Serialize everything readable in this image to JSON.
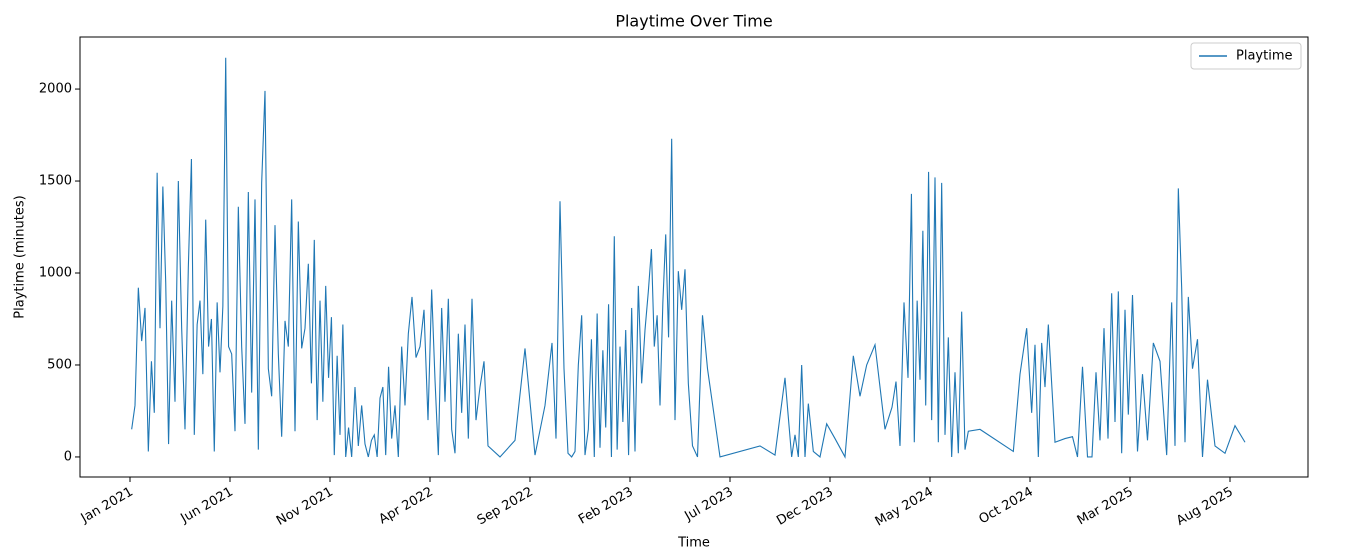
{
  "chart_data": {
    "type": "line",
    "title": "Playtime Over Time",
    "x_label": "Time",
    "y_label": "Playtime (minutes)",
    "x": [
      "2021-01",
      "2021-01",
      "2021-01",
      "2021-01",
      "2021-01",
      "2021-01",
      "2021-02",
      "2021-02",
      "2021-02",
      "2021-02",
      "2021-02",
      "2021-02",
      "2021-02",
      "2021-03",
      "2021-03",
      "2021-03",
      "2021-03",
      "2021-03",
      "2021-03",
      "2021-04",
      "2021-04",
      "2021-04",
      "2021-04",
      "2021-04",
      "2021-04",
      "2021-04",
      "2021-05",
      "2021-05",
      "2021-05",
      "2021-05",
      "2021-05",
      "2021-05",
      "2021-05",
      "2021-06",
      "2021-06",
      "2021-06",
      "2021-06",
      "2021-06",
      "2021-06",
      "2021-07",
      "2021-07",
      "2021-07",
      "2021-07",
      "2021-07",
      "2021-07",
      "2021-08",
      "2021-08",
      "2021-08",
      "2021-08",
      "2021-08",
      "2021-08",
      "2021-09",
      "2021-09",
      "2021-09",
      "2021-09",
      "2021-09",
      "2021-09",
      "2021-10",
      "2021-10",
      "2021-10",
      "2021-10",
      "2021-10",
      "2021-10",
      "2021-10",
      "2021-11",
      "2021-11",
      "2021-11",
      "2021-11",
      "2021-11",
      "2021-11",
      "2021-11",
      "2021-12",
      "2021-12",
      "2021-12",
      "2021-12",
      "2021-12",
      "2021-12",
      "2022-01",
      "2022-01",
      "2022-01",
      "2022-01",
      "2022-01",
      "2022-01",
      "2022-01",
      "2022-02",
      "2022-02",
      "2022-02",
      "2022-02",
      "2022-02",
      "2022-02",
      "2022-03",
      "2022-03",
      "2022-03",
      "2022-03",
      "2022-03",
      "2022-04",
      "2022-04",
      "2022-04",
      "2022-04",
      "2022-04",
      "2022-04",
      "2022-05",
      "2022-05",
      "2022-05",
      "2022-05",
      "2022-05",
      "2022-05",
      "2022-06",
      "2022-06",
      "2022-06",
      "2022-06",
      "2022-06",
      "2022-07",
      "2022-08",
      "2022-08",
      "2022-09",
      "2022-09",
      "2022-10",
      "2022-10",
      "2022-10",
      "2022-10",
      "2022-10",
      "2022-11",
      "2022-11",
      "2022-11",
      "2022-11",
      "2022-11",
      "2022-11",
      "2022-12",
      "2022-12",
      "2022-12",
      "2022-12",
      "2022-12",
      "2022-12",
      "2022-12",
      "2023-01",
      "2023-01",
      "2023-01",
      "2023-01",
      "2023-01",
      "2023-01",
      "2023-01",
      "2023-02",
      "2023-02",
      "2023-02",
      "2023-02",
      "2023-02",
      "2023-02",
      "2023-03",
      "2023-03",
      "2023-03",
      "2023-03",
      "2023-03",
      "2023-03",
      "2023-03",
      "2023-04",
      "2023-04",
      "2023-04",
      "2023-04",
      "2023-04",
      "2023-04",
      "2023-05",
      "2023-05",
      "2023-05",
      "2023-05",
      "2023-06",
      "2023-08",
      "2023-09",
      "2023-09",
      "2023-10",
      "2023-10",
      "2023-10",
      "2023-10",
      "2023-10",
      "2023-10",
      "2023-11",
      "2023-11",
      "2023-11",
      "2023-12",
      "2023-12",
      "2024-01",
      "2024-01",
      "2024-01",
      "2024-02",
      "2024-02",
      "2024-03",
      "2024-03",
      "2024-03",
      "2024-03",
      "2024-03",
      "2024-04",
      "2024-04",
      "2024-04",
      "2024-04",
      "2024-04",
      "2024-04",
      "2024-04",
      "2024-05",
      "2024-05",
      "2024-05",
      "2024-05",
      "2024-05",
      "2024-05",
      "2024-06",
      "2024-06",
      "2024-06",
      "2024-06",
      "2024-06",
      "2024-06",
      "2024-07",
      "2024-09",
      "2024-09",
      "2024-09",
      "2024-10",
      "2024-10",
      "2024-10",
      "2024-10",
      "2024-10",
      "2024-10",
      "2024-11",
      "2024-11",
      "2024-12",
      "2024-12",
      "2024-12",
      "2024-12",
      "2025-01",
      "2025-01",
      "2025-01",
      "2025-01",
      "2025-01",
      "2025-02",
      "2025-02",
      "2025-02",
      "2025-02",
      "2025-02",
      "2025-02",
      "2025-03",
      "2025-03",
      "2025-03",
      "2025-03",
      "2025-04",
      "2025-04",
      "2025-04",
      "2025-05",
      "2025-05",
      "2025-05",
      "2025-05",
      "2025-05",
      "2025-05",
      "2025-06",
      "2025-06",
      "2025-06",
      "2025-06",
      "2025-07",
      "2025-07",
      "2025-08",
      "2025-08"
    ],
    "series": [
      {
        "name": "Playtime",
        "color": "#1f77b4",
        "values": [
          150,
          280,
          920,
          630,
          810,
          30,
          520,
          240,
          1545,
          700,
          1470,
          950,
          70,
          850,
          300,
          1500,
          700,
          150,
          1030,
          1620,
          120,
          720,
          850,
          450,
          1290,
          600,
          750,
          30,
          840,
          460,
          820,
          2170,
          600,
          560,
          140,
          1360,
          600,
          180,
          1440,
          350,
          1400,
          40,
          1490,
          1990,
          480,
          330,
          1260,
          560,
          110,
          740,
          600,
          1400,
          140,
          1280,
          590,
          700,
          1050,
          400,
          1180,
          200,
          850,
          300,
          930,
          430,
          760,
          10,
          550,
          120,
          720,
          0,
          160,
          0,
          380,
          60,
          280,
          70,
          0,
          90,
          120,
          0,
          320,
          380,
          10,
          490,
          100,
          280,
          0,
          600,
          280,
          670,
          870,
          540,
          600,
          800,
          200,
          910,
          420,
          10,
          810,
          300,
          860,
          150,
          20,
          670,
          240,
          720,
          100,
          860,
          200,
          380,
          520,
          60,
          0,
          90,
          590,
          10,
          280,
          620,
          100,
          1390,
          480,
          20,
          0,
          30,
          500,
          770,
          10,
          150,
          640,
          0,
          780,
          50,
          580,
          160,
          830,
          0,
          1200,
          40,
          600,
          190,
          690,
          10,
          810,
          30,
          930,
          400,
          690,
          900,
          1130,
          600,
          770,
          280,
          840,
          1210,
          650,
          1730,
          200,
          1010,
          800,
          1020,
          400,
          60,
          0,
          770,
          480,
          0,
          60,
          10,
          430,
          0,
          120,
          0,
          500,
          0,
          290,
          30,
          0,
          180,
          100,
          0,
          550,
          330,
          500,
          610,
          150,
          270,
          410,
          60,
          840,
          430,
          1430,
          80,
          850,
          420,
          1230,
          280,
          1550,
          200,
          1520,
          80,
          1490,
          120,
          650,
          0,
          460,
          20,
          790,
          40,
          140,
          150,
          30,
          450,
          700,
          240,
          610,
          0,
          620,
          380,
          720,
          80,
          100,
          110,
          0,
          490,
          0,
          0,
          460,
          90,
          700,
          100,
          890,
          190,
          900,
          20,
          800,
          230,
          880,
          30,
          450,
          90,
          620,
          520,
          10,
          840,
          60,
          1460,
          920,
          80,
          870,
          480,
          640,
          0,
          420,
          60,
          20,
          170,
          80
        ]
      }
    ],
    "xlim": [
      "2020-10",
      "2025-12"
    ],
    "xticks": [
      {
        "value": "2021-01",
        "label": "Jan 2021"
      },
      {
        "value": "2021-06",
        "label": "Jun 2021"
      },
      {
        "value": "2021-11",
        "label": "Nov 2021"
      },
      {
        "value": "2022-04",
        "label": "Apr 2022"
      },
      {
        "value": "2022-09",
        "label": "Sep 2022"
      },
      {
        "value": "2023-02",
        "label": "Feb 2023"
      },
      {
        "value": "2023-07",
        "label": "Jul 2023"
      },
      {
        "value": "2023-12",
        "label": "Dec 2023"
      },
      {
        "value": "2024-05",
        "label": "May 2024"
      },
      {
        "value": "2024-10",
        "label": "Oct 2024"
      },
      {
        "value": "2025-03",
        "label": "Mar 2025"
      },
      {
        "value": "2025-08",
        "label": "Aug 2025"
      }
    ],
    "ylim": [
      -109,
      2283
    ],
    "yticks": [
      0,
      500,
      1000,
      1500,
      2000
    ],
    "legend": "upper right"
  }
}
